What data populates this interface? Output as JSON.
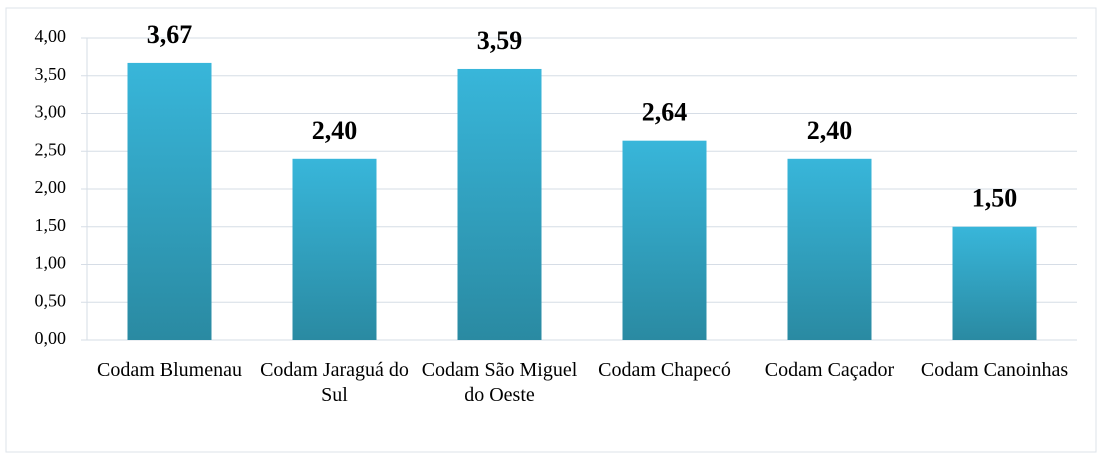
{
  "chart_data": {
    "type": "bar",
    "categories": [
      "Codam Blumenau",
      "Codam Jaraguá do Sul",
      "Codam São Miguel do Oeste",
      "Codam Chapecó",
      "Codam Caçador",
      "Codam Canoinhas"
    ],
    "values": [
      3.67,
      2.4,
      3.59,
      2.64,
      2.4,
      1.5
    ],
    "value_labels": [
      "3,67",
      "2,40",
      "3,59",
      "2,64",
      "2,40",
      "1,50"
    ],
    "color": "#33b0d4",
    "ylim": [
      0,
      4
    ],
    "yticks": [
      {
        "value": 0,
        "label": "0,00"
      },
      {
        "value": 0.5,
        "label": "0,50"
      },
      {
        "value": 1,
        "label": "1,00"
      },
      {
        "value": 1.5,
        "label": "1,50"
      },
      {
        "value": 2,
        "label": "2,00"
      },
      {
        "value": 2.5,
        "label": "2,50"
      },
      {
        "value": 3,
        "label": "3,00"
      },
      {
        "value": 3.5,
        "label": "3,50"
      },
      {
        "value": 4,
        "label": "4,00"
      }
    ],
    "grid": true
  }
}
